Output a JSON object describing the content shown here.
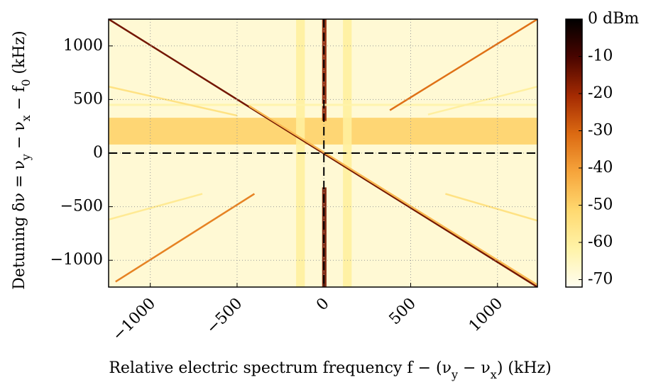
{
  "chart_data": {
    "type": "heatmap",
    "xlabel": [
      "Relative electric spectrum frequency f − (ν",
      "y",
      " − ν",
      "x",
      ") (kHz)"
    ],
    "ylabel": [
      "Detuning δν = ν",
      "y",
      " − ν",
      "x",
      " − f",
      "0",
      " (kHz)"
    ],
    "xlim": [
      -1240,
      1230
    ],
    "ylim": [
      -1250,
      1250
    ],
    "xticks": [
      {
        "value": -1000,
        "label": "−1000"
      },
      {
        "value": -500,
        "label": "−500"
      },
      0,
      500,
      1000
    ],
    "yticks": [
      {
        "value": -1000,
        "label": "−1000"
      },
      {
        "value": -500,
        "label": "−500"
      },
      0,
      500,
      1000
    ],
    "grid": true,
    "reference_lines": {
      "x": 0,
      "y": 0
    },
    "clim": [
      -72,
      0
    ],
    "cticks": [
      {
        "value": 0,
        "label": "0 dBm"
      },
      -10,
      -20,
      -30,
      -40,
      -50,
      -60,
      -70
    ],
    "colors": [
      "#fffdf0",
      "#fff3a8",
      "#ffd970",
      "#f6a53c",
      "#dc6a12",
      "#a42a02",
      "#4a0500",
      "#000000"
    ],
    "background_level": -68,
    "bands": [
      {
        "x": [
          -1240,
          1230
        ],
        "y": [
          80,
          330
        ],
        "level": -50
      },
      {
        "x": [
          -10,
          15
        ],
        "y": [
          300,
          1250
        ],
        "level": -18
      },
      {
        "x": [
          -10,
          15
        ],
        "y": [
          -1250,
          -320
        ],
        "level": -15
      },
      {
        "x": [
          -160,
          -110
        ],
        "y": [
          -1250,
          1250
        ],
        "level": -60
      },
      {
        "x": [
          110,
          160
        ],
        "y": [
          -1250,
          1250
        ],
        "level": -60
      },
      {
        "x": [
          -1240,
          1230
        ],
        "y": [
          440,
          460
        ],
        "level": -62
      }
    ],
    "ridges": [
      {
        "x": [
          -1240,
          1230
        ],
        "y": [
          1250,
          -1250
        ],
        "level": -15
      },
      {
        "x": [
          -430,
          1230
        ],
        "y": [
          440,
          -1230
        ],
        "level": -45
      },
      {
        "x": [
          380,
          1230
        ],
        "y": [
          400,
          1250
        ],
        "level": -32
      },
      {
        "x": [
          -1200,
          -400
        ],
        "y": [
          -1200,
          -380
        ],
        "level": -35
      },
      {
        "x": [
          -1240,
          -500
        ],
        "y": [
          620,
          350
        ],
        "level": -55
      },
      {
        "x": [
          700,
          1230
        ],
        "y": [
          -380,
          -630
        ],
        "level": -55
      },
      {
        "x": [
          -1240,
          -700
        ],
        "y": [
          -620,
          -380
        ],
        "level": -58
      },
      {
        "x": [
          600,
          1230
        ],
        "y": [
          360,
          620
        ],
        "level": -60
      }
    ]
  }
}
